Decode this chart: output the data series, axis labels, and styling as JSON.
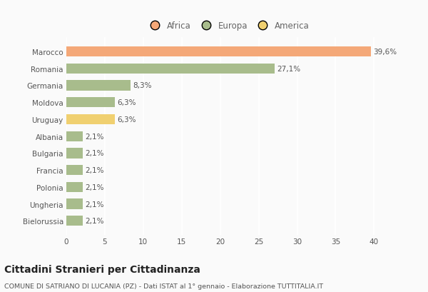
{
  "categories": [
    "Marocco",
    "Romania",
    "Germania",
    "Moldova",
    "Uruguay",
    "Albania",
    "Bulgaria",
    "Francia",
    "Polonia",
    "Ungheria",
    "Bielorussia"
  ],
  "values": [
    39.6,
    27.1,
    8.3,
    6.3,
    6.3,
    2.1,
    2.1,
    2.1,
    2.1,
    2.1,
    2.1
  ],
  "colors": [
    "#F4A878",
    "#A8BC8C",
    "#A8BC8C",
    "#A8BC8C",
    "#F0D070",
    "#A8BC8C",
    "#A8BC8C",
    "#A8BC8C",
    "#A8BC8C",
    "#A8BC8C",
    "#A8BC8C"
  ],
  "labels": [
    "39,6%",
    "27,1%",
    "8,3%",
    "6,3%",
    "6,3%",
    "2,1%",
    "2,1%",
    "2,1%",
    "2,1%",
    "2,1%",
    "2,1%"
  ],
  "legend": [
    {
      "label": "Africa",
      "color": "#F4A878"
    },
    {
      "label": "Europa",
      "color": "#A8BC8C"
    },
    {
      "label": "America",
      "color": "#F0D070"
    }
  ],
  "title": "Cittadini Stranieri per Cittadinanza",
  "subtitle": "COMUNE DI SATRIANO DI LUCANIA (PZ) - Dati ISTAT al 1° gennaio - Elaborazione TUTTITALIA.IT",
  "xlim": [
    0,
    42
  ],
  "xticks": [
    0,
    5,
    10,
    15,
    20,
    25,
    30,
    35,
    40
  ],
  "background_color": "#FAFAFA",
  "grid_color": "#FFFFFF",
  "bar_height": 0.6,
  "label_fontsize": 7.5,
  "tick_fontsize": 7.5,
  "title_fontsize": 10,
  "subtitle_fontsize": 6.8,
  "legend_fontsize": 8.5
}
